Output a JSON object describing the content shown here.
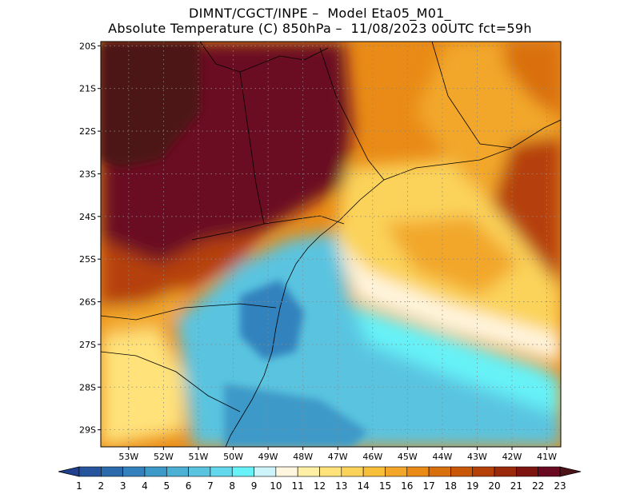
{
  "title": {
    "line1": "DIMNT/CGCT/INPE –  Model Eta05_M01_",
    "line2": "Absolute Temperature (C) 850hPa –  11/08/2023 00UTC fct=59h"
  },
  "axes": {
    "lat_labels": [
      "20S",
      "21S",
      "22S",
      "23S",
      "24S",
      "25S",
      "26S",
      "27S",
      "28S",
      "29S"
    ],
    "lon_labels": [
      "53W",
      "52W",
      "51W",
      "50W",
      "49W",
      "48W",
      "47W",
      "46W",
      "45W",
      "44W",
      "43W",
      "42W",
      "41W"
    ],
    "lat_range": [
      -29.4,
      -19.9
    ],
    "lon_range": [
      -53.8,
      -40.6
    ],
    "grid": "dotted"
  },
  "colorbar": {
    "labels": [
      "1",
      "2",
      "3",
      "4",
      "5",
      "6",
      "7",
      "8",
      "9",
      "10",
      "11",
      "12",
      "13",
      "14",
      "15",
      "16",
      "17",
      "18",
      "19",
      "20",
      "21",
      "22",
      "23"
    ],
    "colors": [
      "#1f3f8f",
      "#26559e",
      "#2a6aad",
      "#3382bd",
      "#3d99c8",
      "#4cafd4",
      "#5ac4e0",
      "#63d8ec",
      "#66f2f8",
      "#ccf4fa",
      "#fff6e0",
      "#fff0a6",
      "#ffe27a",
      "#fbd35a",
      "#f7bf3a",
      "#f2a72a",
      "#e98b16",
      "#d9700e",
      "#c85708",
      "#b54008",
      "#9b2a0a",
      "#7e1410",
      "#6a0a22",
      "#4d1218"
    ]
  },
  "field": {
    "type": "filled-contour",
    "variable": "temperature_850hPa",
    "regions": [
      {
        "name": "hot-interior-northwest",
        "level_min": 22,
        "color": "#6a0a22"
      },
      {
        "name": "darkest-core",
        "level_min": 23,
        "color": "#4d1218"
      },
      {
        "name": "warm-east-plateau",
        "level_min": 17,
        "color": "#e98b16"
      },
      {
        "name": "cool-south-ocean",
        "level_min": 7,
        "color": "#5ac4e0"
      },
      {
        "name": "cold-core-santa-catarina",
        "level_max": 5,
        "color": "#3382bd"
      }
    ]
  }
}
